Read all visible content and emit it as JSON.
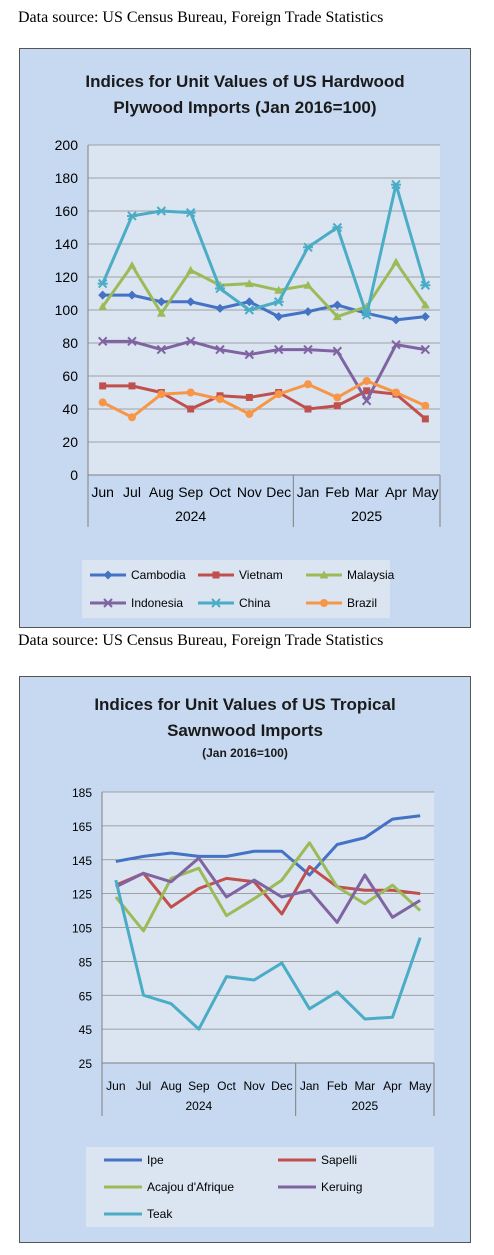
{
  "source_note_1": "Data source: US Census Bureau, Foreign Trade Statistics",
  "source_note_2": "Data source: US Census Bureau, Foreign Trade Statistics",
  "colors": {
    "panel_bg": "#c6d9f1",
    "plot_bg": "#dbe5f1",
    "Cambodia": "#4472c4",
    "Vietnam": "#c0504d",
    "Malaysia": "#9bbb59",
    "Indonesia": "#8064a2",
    "China": "#4bacc6",
    "Brazil": "#f79646",
    "Ipe": "#4472c4",
    "Sapelli": "#c0504d",
    "Acajou": "#9bbb59",
    "Keruing": "#8064a2",
    "Teak": "#4bacc6"
  },
  "chart_data": [
    {
      "type": "line",
      "title_lines": [
        "Indices for Unit Values of US Hardwood",
        "Plywood Imports (Jan 2016=100)"
      ],
      "categories": [
        "Jun",
        "Jul",
        "Aug",
        "Sep",
        "Oct",
        "Nov",
        "Dec",
        "Jan",
        "Feb",
        "Mar",
        "Apr",
        "May"
      ],
      "year_groups": [
        {
          "label": "2024",
          "count": 7
        },
        {
          "label": "2025",
          "count": 5
        }
      ],
      "ylim": [
        0,
        200
      ],
      "yticks": [
        0,
        20,
        40,
        60,
        80,
        100,
        120,
        140,
        160,
        180,
        200
      ],
      "grid": true,
      "legend_position": "bottom",
      "series": [
        {
          "name": "Cambodia",
          "values": [
            109,
            109,
            105,
            105,
            101,
            105,
            96,
            99,
            103,
            98,
            94,
            96
          ]
        },
        {
          "name": "Vietnam",
          "values": [
            54,
            54,
            50,
            40,
            48,
            47,
            50,
            40,
            42,
            51,
            49,
            34
          ]
        },
        {
          "name": "Malaysia",
          "values": [
            102,
            127,
            98,
            124,
            115,
            116,
            112,
            115,
            96,
            102,
            129,
            103
          ]
        },
        {
          "name": "Indonesia",
          "values": [
            81,
            81,
            76,
            81,
            76,
            73,
            76,
            76,
            75,
            45,
            79,
            76
          ]
        },
        {
          "name": "China",
          "values": [
            116,
            157,
            160,
            159,
            113,
            100,
            105,
            138,
            150,
            97,
            176,
            115
          ]
        },
        {
          "name": "Brazil",
          "values": [
            44,
            35,
            49,
            50,
            46,
            37,
            49,
            55,
            47,
            57,
            50,
            42
          ]
        }
      ]
    },
    {
      "type": "line",
      "title_lines": [
        "Indices for Unit Values of US Tropical",
        "Sawnwood Imports"
      ],
      "subtitle": "(Jan 2016=100)",
      "categories": [
        "Jun",
        "Jul",
        "Aug",
        "Sep",
        "Oct",
        "Nov",
        "Dec",
        "Jan",
        "Feb",
        "Mar",
        "Apr",
        "May"
      ],
      "year_groups": [
        {
          "label": "2024",
          "count": 7
        },
        {
          "label": "2025",
          "count": 5
        }
      ],
      "ylim": [
        25,
        185
      ],
      "yticks": [
        25,
        45,
        65,
        85,
        105,
        125,
        145,
        165,
        185
      ],
      "grid": true,
      "legend_position": "bottom",
      "series": [
        {
          "name": "Ipe",
          "values": [
            144,
            147,
            149,
            147,
            147,
            150,
            150,
            136,
            154,
            158,
            169,
            171
          ]
        },
        {
          "name": "Sapelli",
          "values": [
            130,
            137,
            117,
            128,
            134,
            132,
            113,
            141,
            129,
            127,
            127,
            125
          ]
        },
        {
          "name": "Acajou d'Afrique",
          "values": [
            123,
            103,
            134,
            140,
            112,
            122,
            133,
            155,
            129,
            119,
            130,
            115
          ]
        },
        {
          "name": "Keruing",
          "values": [
            129,
            137,
            132,
            146,
            123,
            133,
            123,
            127,
            108,
            136,
            111,
            121
          ]
        },
        {
          "name": "Teak",
          "values": [
            133,
            65,
            60,
            45,
            76,
            74,
            84,
            57,
            67,
            51,
            52,
            99
          ]
        }
      ]
    }
  ]
}
